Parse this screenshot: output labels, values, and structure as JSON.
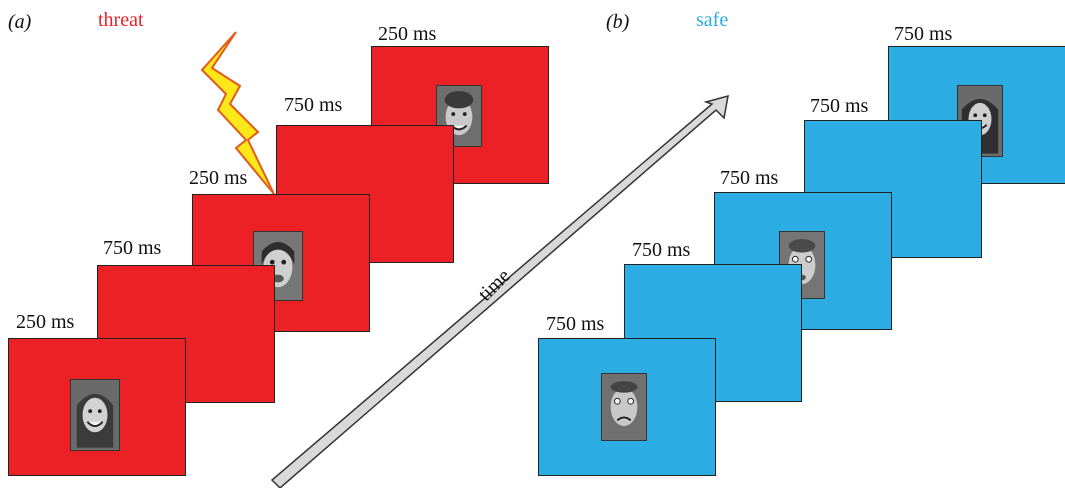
{
  "panels": {
    "a": {
      "letter": "(a)",
      "condition": "threat",
      "color": "#EC2126",
      "durations": [
        "250 ms",
        "750 ms",
        "250 ms",
        "750 ms",
        "250 ms"
      ],
      "stimulus_icon": "lightning-bolt-icon"
    },
    "b": {
      "letter": "(b)",
      "condition": "safe",
      "color": "#2BACE2",
      "durations": [
        "750 ms",
        "750 ms",
        "750 ms",
        "750 ms",
        "750 ms"
      ]
    }
  },
  "arrow": {
    "label": "time"
  }
}
